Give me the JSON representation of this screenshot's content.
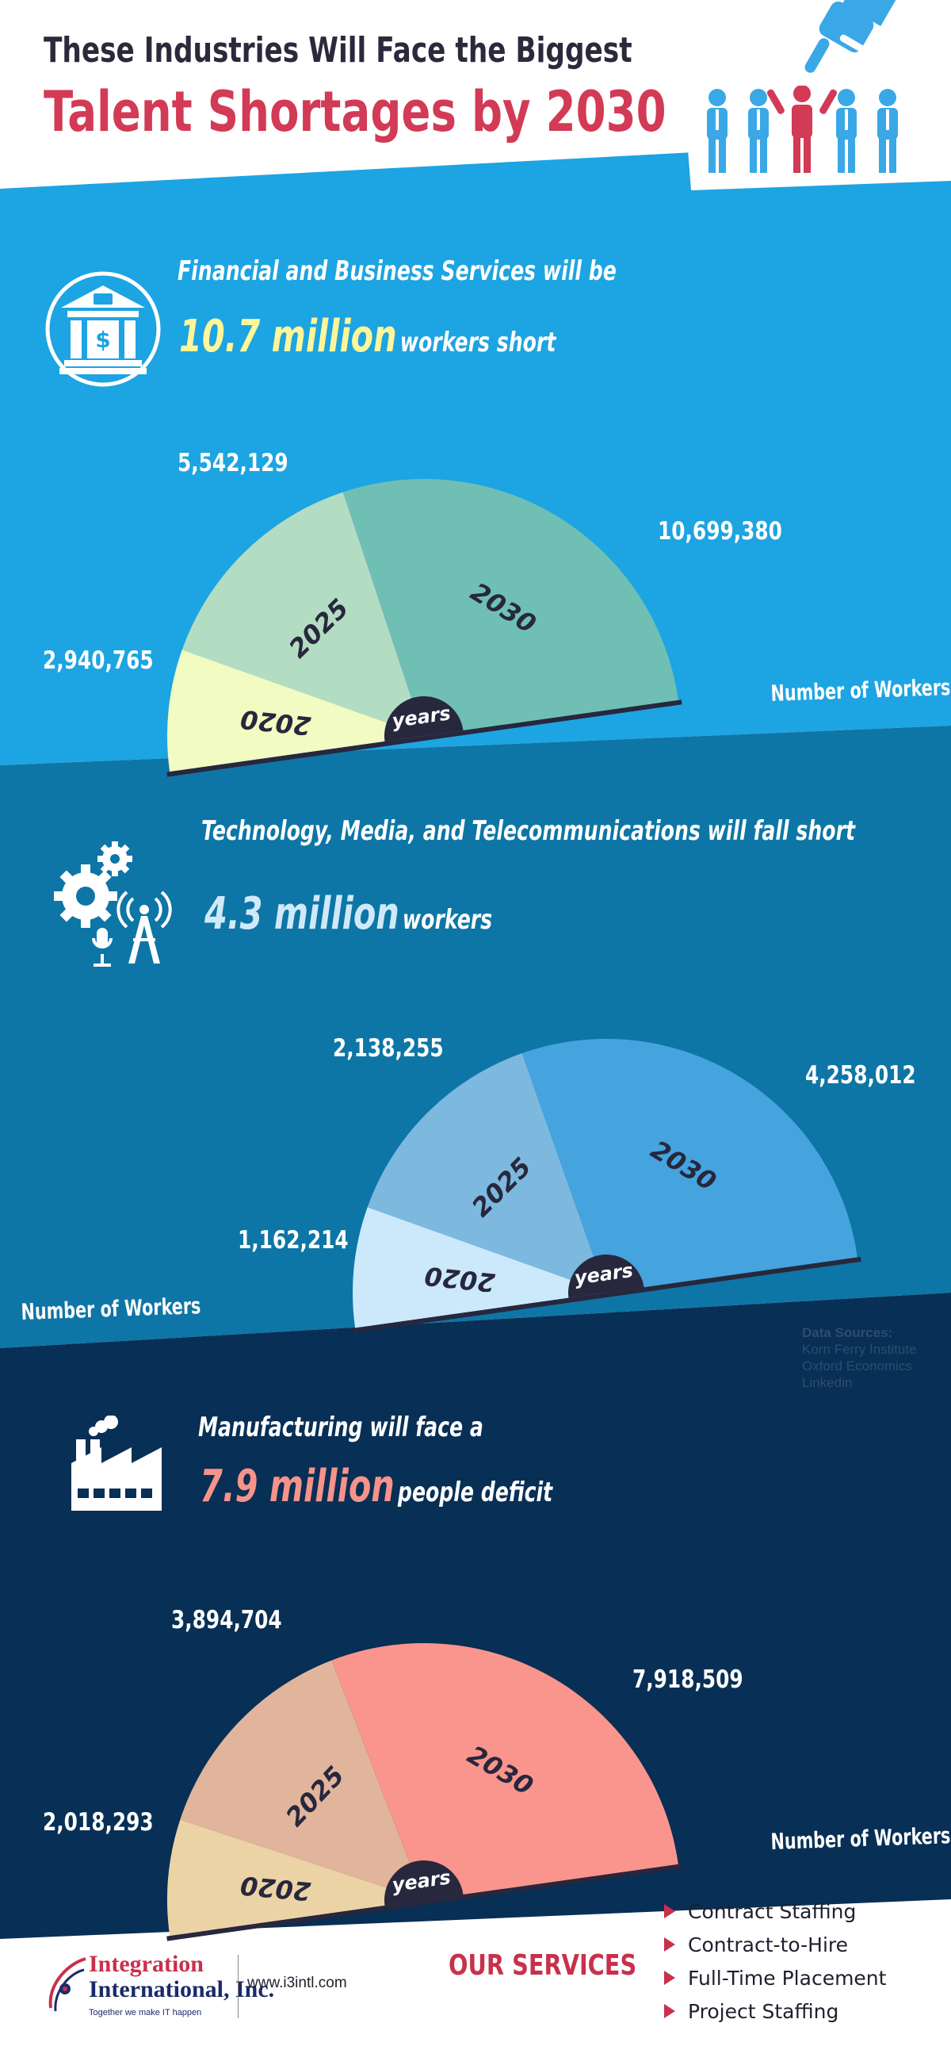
{
  "header": {
    "title_line1": "These Industries Will Face the Biggest",
    "title_line2": "Talent Shortages by 2030"
  },
  "sections": [
    {
      "id": "finance",
      "icon": "bank-icon",
      "headline_pre": "Financial and Business Services will be",
      "headline_value": "10.7 million",
      "headline_post": "workers short",
      "value_color": "#fff69a",
      "number_of_workers_label": "Number of Workers",
      "center_label": "years"
    },
    {
      "id": "tech",
      "icon": "gears-antenna-mic-icon",
      "headline_pre": "Technology, Media, and Telecommunications will fall short",
      "headline_value": "4.3 million",
      "headline_post": "workers",
      "value_color": "#cfe9f9",
      "number_of_workers_label": "Number of Workers",
      "center_label": "years"
    },
    {
      "id": "manufacturing",
      "icon": "factory-icon",
      "headline_pre": "Manufacturing will face a",
      "headline_value": "7.9 million",
      "headline_post": "people deficit",
      "value_color": "#f7938a",
      "number_of_workers_label": "Number of Workers",
      "center_label": "years"
    }
  ],
  "chart_data": [
    {
      "type": "pie",
      "categories": [
        "2020",
        "2025",
        "2030"
      ],
      "values": [
        2940765,
        5542129,
        10699380
      ],
      "value_labels": [
        "2,940,765",
        "5,542,129",
        "10,699,380"
      ],
      "colors": [
        "#f2fbc1",
        "#b3ddc3",
        "#70bfb4"
      ]
    },
    {
      "type": "pie",
      "categories": [
        "2020",
        "2025",
        "2030"
      ],
      "values": [
        1162214,
        2138255,
        4258012
      ],
      "value_labels": [
        "1,162,214",
        "2,138,255",
        "4,258,012"
      ],
      "colors": [
        "#cbe9fb",
        "#7db8df",
        "#45a3dd"
      ]
    },
    {
      "type": "pie",
      "categories": [
        "2020",
        "2025",
        "2030"
      ],
      "values": [
        2018293,
        3894704,
        7918509
      ],
      "value_labels": [
        "2,018,293",
        "3,894,704",
        "7,918,509"
      ],
      "colors": [
        "#ebd3a5",
        "#e1b59c",
        "#f9958c"
      ]
    }
  ],
  "sources": {
    "heading": "Data Sources:",
    "lines": [
      "Korn Ferry Institute",
      "Oxford Economics",
      "Linkedin"
    ]
  },
  "footer": {
    "company_line1": "Integration",
    "company_line2": "International, Inc.",
    "tagline": "Together we make IT happen",
    "url": "www.i3intl.com",
    "services_title": "OUR SERVICES",
    "services": [
      "Contract Staffing",
      "Contract-to-Hire",
      "Full-Time Placement",
      "Project Staffing"
    ]
  },
  "colors": {
    "band1": "#1da4e2",
    "band2": "#0d76a6",
    "band3": "#082f55",
    "title_red": "#d23a55",
    "people_blue": "#3aa8e6",
    "people_red": "#d23a55",
    "dark_hub": "#27273d"
  }
}
